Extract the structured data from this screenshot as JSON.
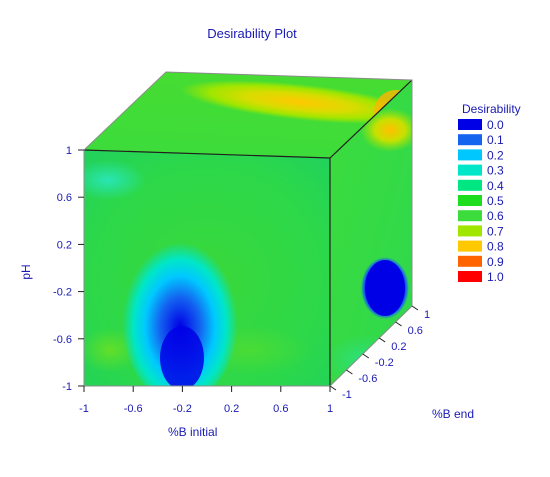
{
  "chart_data": {
    "type": "heatmap",
    "title": "Desirability Plot",
    "xlabel": "%B initial",
    "ylabel": "pH",
    "zlabel": "%B end",
    "x_ticks": [
      "-1",
      "-0.6",
      "-0.2",
      "0.2",
      "0.6",
      "1"
    ],
    "y_ticks": [
      "1",
      "0.6",
      "0.2",
      "-0.2",
      "-0.6",
      "-1"
    ],
    "z_ticks": [
      "-1",
      "-0.6",
      "-0.2",
      "0.2",
      "0.6",
      "1"
    ],
    "xlim": [
      -1,
      1
    ],
    "ylim": [
      -1,
      1
    ],
    "zlim": [
      -1,
      1
    ],
    "legend": {
      "title": "Desirability",
      "placement": "right",
      "levels": [
        {
          "label": "0.0",
          "color": "#0000e6"
        },
        {
          "label": "0.1",
          "color": "#1464f0"
        },
        {
          "label": "0.2",
          "color": "#00c8ff"
        },
        {
          "label": "0.3",
          "color": "#00e6c8"
        },
        {
          "label": "0.4",
          "color": "#00e682"
        },
        {
          "label": "0.5",
          "color": "#1edc1e"
        },
        {
          "label": "0.6",
          "color": "#3cdc3c"
        },
        {
          "label": "0.7",
          "color": "#a0e600"
        },
        {
          "label": "0.8",
          "color": "#ffc800"
        },
        {
          "label": "0.9",
          "color": "#ff6400"
        },
        {
          "label": "1.0",
          "color": "#ff0000"
        }
      ]
    }
  }
}
